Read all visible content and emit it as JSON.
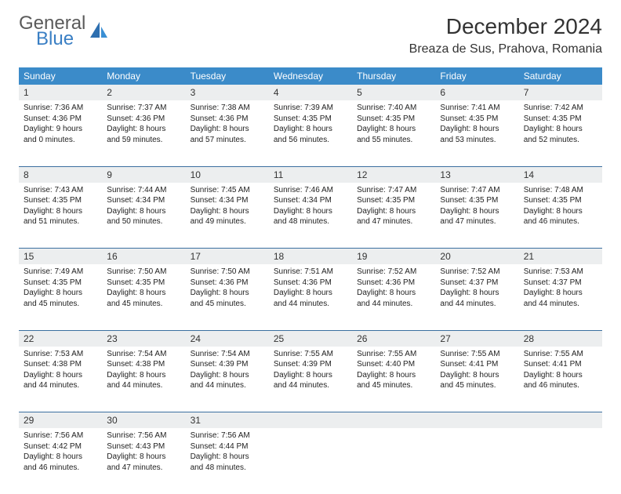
{
  "brand": {
    "general": "General",
    "blue": "Blue"
  },
  "title": "December 2024",
  "location": "Breaza de Sus, Prahova, Romania",
  "colors": {
    "header_bg": "#3b8bc9",
    "header_text": "#ffffff",
    "daynum_bg": "#eceeef",
    "row_border": "#3b6fa0",
    "brand_blue": "#3a7fc4",
    "brand_gray": "#5a5a5a"
  },
  "weekdays": [
    "Sunday",
    "Monday",
    "Tuesday",
    "Wednesday",
    "Thursday",
    "Friday",
    "Saturday"
  ],
  "weeks": [
    [
      {
        "n": "1",
        "sr": "7:36 AM",
        "ss": "4:36 PM",
        "dl": "9 hours and 0 minutes."
      },
      {
        "n": "2",
        "sr": "7:37 AM",
        "ss": "4:36 PM",
        "dl": "8 hours and 59 minutes."
      },
      {
        "n": "3",
        "sr": "7:38 AM",
        "ss": "4:36 PM",
        "dl": "8 hours and 57 minutes."
      },
      {
        "n": "4",
        "sr": "7:39 AM",
        "ss": "4:35 PM",
        "dl": "8 hours and 56 minutes."
      },
      {
        "n": "5",
        "sr": "7:40 AM",
        "ss": "4:35 PM",
        "dl": "8 hours and 55 minutes."
      },
      {
        "n": "6",
        "sr": "7:41 AM",
        "ss": "4:35 PM",
        "dl": "8 hours and 53 minutes."
      },
      {
        "n": "7",
        "sr": "7:42 AM",
        "ss": "4:35 PM",
        "dl": "8 hours and 52 minutes."
      }
    ],
    [
      {
        "n": "8",
        "sr": "7:43 AM",
        "ss": "4:35 PM",
        "dl": "8 hours and 51 minutes."
      },
      {
        "n": "9",
        "sr": "7:44 AM",
        "ss": "4:34 PM",
        "dl": "8 hours and 50 minutes."
      },
      {
        "n": "10",
        "sr": "7:45 AM",
        "ss": "4:34 PM",
        "dl": "8 hours and 49 minutes."
      },
      {
        "n": "11",
        "sr": "7:46 AM",
        "ss": "4:34 PM",
        "dl": "8 hours and 48 minutes."
      },
      {
        "n": "12",
        "sr": "7:47 AM",
        "ss": "4:35 PM",
        "dl": "8 hours and 47 minutes."
      },
      {
        "n": "13",
        "sr": "7:47 AM",
        "ss": "4:35 PM",
        "dl": "8 hours and 47 minutes."
      },
      {
        "n": "14",
        "sr": "7:48 AM",
        "ss": "4:35 PM",
        "dl": "8 hours and 46 minutes."
      }
    ],
    [
      {
        "n": "15",
        "sr": "7:49 AM",
        "ss": "4:35 PM",
        "dl": "8 hours and 45 minutes."
      },
      {
        "n": "16",
        "sr": "7:50 AM",
        "ss": "4:35 PM",
        "dl": "8 hours and 45 minutes."
      },
      {
        "n": "17",
        "sr": "7:50 AM",
        "ss": "4:36 PM",
        "dl": "8 hours and 45 minutes."
      },
      {
        "n": "18",
        "sr": "7:51 AM",
        "ss": "4:36 PM",
        "dl": "8 hours and 44 minutes."
      },
      {
        "n": "19",
        "sr": "7:52 AM",
        "ss": "4:36 PM",
        "dl": "8 hours and 44 minutes."
      },
      {
        "n": "20",
        "sr": "7:52 AM",
        "ss": "4:37 PM",
        "dl": "8 hours and 44 minutes."
      },
      {
        "n": "21",
        "sr": "7:53 AM",
        "ss": "4:37 PM",
        "dl": "8 hours and 44 minutes."
      }
    ],
    [
      {
        "n": "22",
        "sr": "7:53 AM",
        "ss": "4:38 PM",
        "dl": "8 hours and 44 minutes."
      },
      {
        "n": "23",
        "sr": "7:54 AM",
        "ss": "4:38 PM",
        "dl": "8 hours and 44 minutes."
      },
      {
        "n": "24",
        "sr": "7:54 AM",
        "ss": "4:39 PM",
        "dl": "8 hours and 44 minutes."
      },
      {
        "n": "25",
        "sr": "7:55 AM",
        "ss": "4:39 PM",
        "dl": "8 hours and 44 minutes."
      },
      {
        "n": "26",
        "sr": "7:55 AM",
        "ss": "4:40 PM",
        "dl": "8 hours and 45 minutes."
      },
      {
        "n": "27",
        "sr": "7:55 AM",
        "ss": "4:41 PM",
        "dl": "8 hours and 45 minutes."
      },
      {
        "n": "28",
        "sr": "7:55 AM",
        "ss": "4:41 PM",
        "dl": "8 hours and 46 minutes."
      }
    ],
    [
      {
        "n": "29",
        "sr": "7:56 AM",
        "ss": "4:42 PM",
        "dl": "8 hours and 46 minutes."
      },
      {
        "n": "30",
        "sr": "7:56 AM",
        "ss": "4:43 PM",
        "dl": "8 hours and 47 minutes."
      },
      {
        "n": "31",
        "sr": "7:56 AM",
        "ss": "4:44 PM",
        "dl": "8 hours and 48 minutes."
      },
      null,
      null,
      null,
      null
    ]
  ],
  "labels": {
    "sunrise": "Sunrise: ",
    "sunset": "Sunset: ",
    "daylight": "Daylight: "
  }
}
